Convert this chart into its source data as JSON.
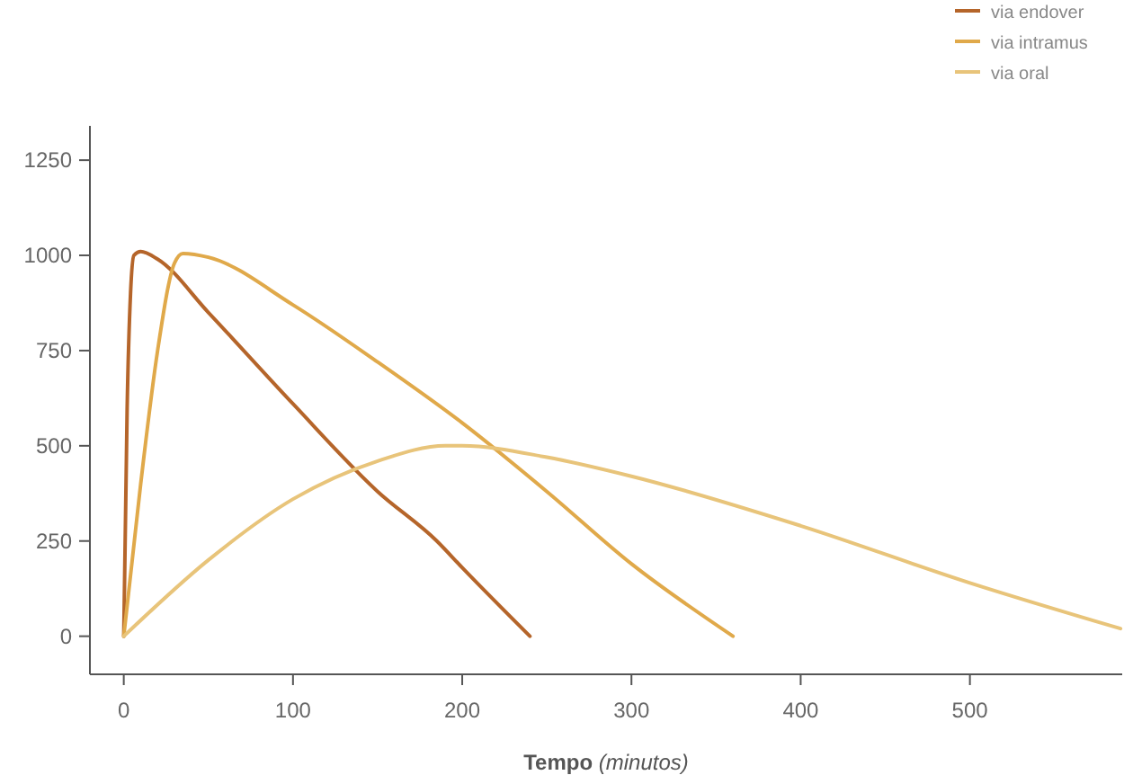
{
  "chart_data": {
    "type": "line",
    "xlabel": "Tempo (minutos)",
    "xlim": [
      -20,
      590
    ],
    "xticks": [
      0,
      100,
      200,
      300,
      400,
      500
    ],
    "ylim": [
      -100,
      1340
    ],
    "yticks": [
      0,
      250,
      500,
      750,
      1000,
      1250
    ],
    "legend": "top right",
    "grid": false,
    "line_style": "solid",
    "series": [
      {
        "name": "via endover",
        "color": "#b5652a",
        "x": [
          0,
          2,
          4,
          6,
          10,
          20,
          50,
          100,
          150,
          185,
          200,
          240
        ],
        "values": [
          0,
          600,
          900,
          1000,
          1010,
          990,
          850,
          610,
          380,
          250,
          180,
          0
        ]
      },
      {
        "name": "via intramus",
        "color": "#e0a94a",
        "x": [
          0,
          10,
          20,
          30,
          35,
          50,
          100,
          150,
          200,
          250,
          300,
          360
        ],
        "values": [
          0,
          400,
          750,
          980,
          1005,
          995,
          870,
          720,
          560,
          380,
          190,
          0
        ]
      },
      {
        "name": "via oral",
        "color": "#e8c47a",
        "x": [
          0,
          50,
          100,
          150,
          190,
          200,
          250,
          300,
          400,
          500,
          589
        ],
        "values": [
          0,
          200,
          360,
          460,
          500,
          500,
          470,
          420,
          290,
          140,
          20
        ]
      }
    ]
  }
}
